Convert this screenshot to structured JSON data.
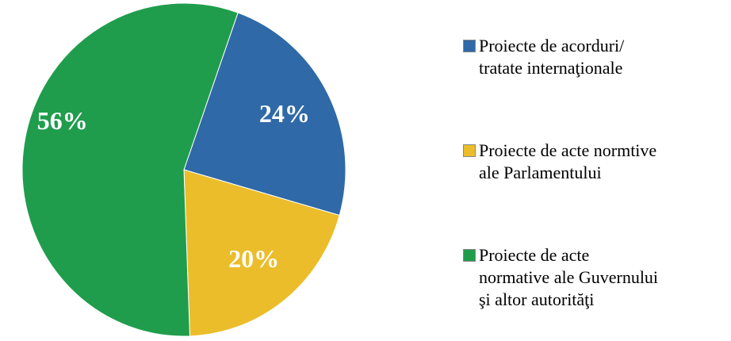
{
  "chart_data": {
    "type": "pie",
    "categories": [
      "Proiecte de acorduri/\ntratate internaţionale",
      "Proiecte de acte normtive\nale Parlamentului",
      "Proiecte de acte\nnormative ale Guvernului\nşi altor autorităţi"
    ],
    "values": [
      24,
      20,
      56
    ],
    "value_labels": [
      "24%",
      "20%",
      "56%"
    ],
    "colors": [
      "#2f69a7",
      "#ebbd2b",
      "#1f9d4d"
    ]
  }
}
